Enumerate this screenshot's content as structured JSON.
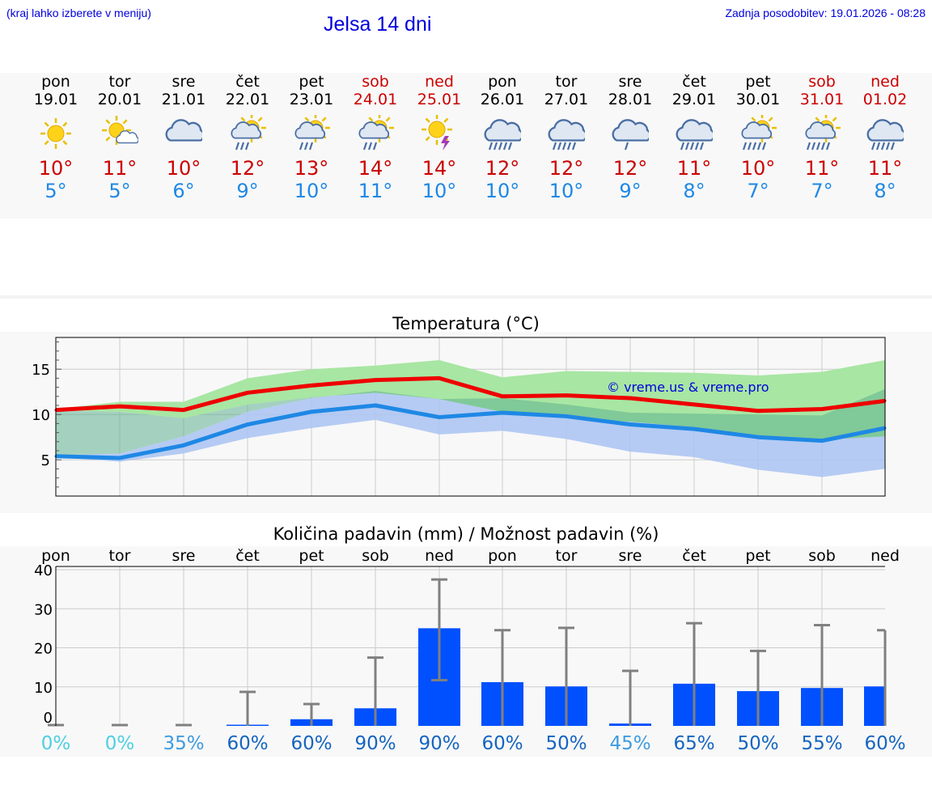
{
  "header": {
    "location_hint": "(kraj lahko izberete v meniju)",
    "title": "Jelsa 14 dni",
    "updated": "Zadnja posodobitev: 19.01.2026 - 08:28"
  },
  "colors": {
    "max_temp": "#cc0000",
    "min_temp": "#1e88e5",
    "header_text": "#0000dd",
    "bars": "#0050ff",
    "max_band": "#a8e6a3",
    "min_band": "#a9c3f2"
  },
  "forecast": [
    {
      "day": "pon",
      "date": "19.01",
      "icon": "sun-icon",
      "max": "10°",
      "min": "5°",
      "weekend": false
    },
    {
      "day": "tor",
      "date": "20.01",
      "icon": "sun-cloud-icon",
      "max": "11°",
      "min": "5°",
      "weekend": false
    },
    {
      "day": "sre",
      "date": "21.01",
      "icon": "cloud-icon",
      "max": "10°",
      "min": "6°",
      "weekend": false
    },
    {
      "day": "čet",
      "date": "22.01",
      "icon": "sun-cloud-rain-icon",
      "max": "12°",
      "min": "9°",
      "weekend": false
    },
    {
      "day": "pet",
      "date": "23.01",
      "icon": "sun-cloud-rain-icon",
      "max": "13°",
      "min": "10°",
      "weekend": false
    },
    {
      "day": "sob",
      "date": "24.01",
      "icon": "sun-cloud-rain-icon",
      "max": "14°",
      "min": "11°",
      "weekend": true
    },
    {
      "day": "ned",
      "date": "25.01",
      "icon": "sun-thunder-icon",
      "max": "14°",
      "min": "10°",
      "weekend": true
    },
    {
      "day": "pon",
      "date": "26.01",
      "icon": "cloud-rain-icon",
      "max": "12°",
      "min": "10°",
      "weekend": false
    },
    {
      "day": "tor",
      "date": "27.01",
      "icon": "cloud-rain-icon",
      "max": "12°",
      "min": "10°",
      "weekend": false
    },
    {
      "day": "sre",
      "date": "28.01",
      "icon": "cloud-light-rain-icon",
      "max": "12°",
      "min": "9°",
      "weekend": false
    },
    {
      "day": "čet",
      "date": "29.01",
      "icon": "cloud-rain-icon",
      "max": "11°",
      "min": "8°",
      "weekend": false
    },
    {
      "day": "pet",
      "date": "30.01",
      "icon": "sun-cloud-heavy-rain-icon",
      "max": "10°",
      "min": "7°",
      "weekend": false
    },
    {
      "day": "sob",
      "date": "31.01",
      "icon": "sun-cloud-heavy-rain-icon",
      "max": "11°",
      "min": "7°",
      "weekend": true
    },
    {
      "day": "ned",
      "date": "01.02",
      "icon": "cloud-rain-icon",
      "max": "11°",
      "min": "8°",
      "weekend": true
    }
  ],
  "chart_data": [
    {
      "type": "line",
      "title": "Temperatura (°C)",
      "watermark": "© vreme.us & vreme.pro",
      "ylim": [
        1,
        18.5
      ],
      "yticks": [
        5,
        10,
        15
      ],
      "grid": true,
      "series": [
        {
          "name": "max",
          "values": [
            10.5,
            10.9,
            10.5,
            12.4,
            13.2,
            13.8,
            14.0,
            12.0,
            12.1,
            11.8,
            11.1,
            10.4,
            10.6,
            11.5
          ],
          "band_low": [
            10.4,
            10.3,
            9.6,
            11.1,
            11.9,
            12.4,
            11.7,
            10.3,
            9.6,
            9.2,
            8.6,
            7.3,
            7.2,
            7.6
          ],
          "band_high": [
            10.6,
            11.4,
            11.4,
            14.0,
            15.0,
            15.4,
            16.0,
            14.1,
            14.8,
            14.7,
            14.6,
            14.3,
            14.7,
            16.0
          ]
        },
        {
          "name": "min",
          "values": [
            5.4,
            5.2,
            6.6,
            8.9,
            10.3,
            11.0,
            9.7,
            10.2,
            9.8,
            8.9,
            8.4,
            7.5,
            7.1,
            8.5
          ],
          "band_low": [
            5.3,
            4.8,
            5.7,
            7.4,
            8.5,
            9.4,
            7.8,
            8.2,
            7.3,
            5.9,
            5.3,
            3.9,
            3.1,
            4.0
          ],
          "band_high": [
            5.5,
            5.7,
            7.6,
            10.3,
            11.8,
            12.6,
            11.7,
            11.8,
            11.1,
            10.2,
            10.1,
            10.0,
            9.9,
            12.8
          ]
        }
      ]
    },
    {
      "type": "bar",
      "title": "Količina padavin (mm) / Možnost padavin (%)",
      "categories": [
        "pon",
        "tor",
        "sre",
        "čet",
        "pet",
        "sob",
        "ned",
        "pon",
        "tor",
        "sre",
        "čet",
        "pet",
        "sob",
        "ned"
      ],
      "values": [
        0,
        0,
        0,
        0.3,
        1.7,
        4.5,
        25,
        11.2,
        10.1,
        0.6,
        10.8,
        8.9,
        9.7,
        10.1
      ],
      "error_high": [
        0.2,
        0.2,
        0.2,
        8.7,
        5.6,
        17.5,
        37.5,
        24.5,
        25.1,
        14.1,
        26.3,
        19.2,
        25.8,
        24.5
      ],
      "error_low": [
        0,
        0,
        0,
        0,
        0,
        0,
        11.7,
        0,
        0,
        0,
        0,
        0,
        0,
        0
      ],
      "probability": [
        "0%",
        "0%",
        "35%",
        "60%",
        "60%",
        "90%",
        "90%",
        "60%",
        "50%",
        "45%",
        "65%",
        "50%",
        "55%",
        "60%"
      ],
      "ylim": [
        0,
        40
      ],
      "yticks": [
        0,
        10,
        20,
        30,
        40
      ],
      "grid": true
    }
  ]
}
